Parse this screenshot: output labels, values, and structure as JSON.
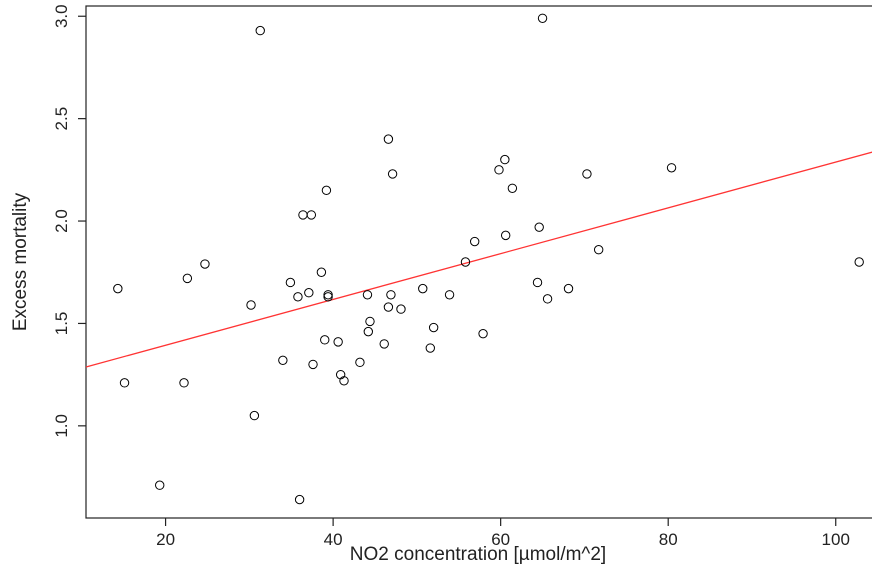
{
  "chart_data": {
    "type": "scatter",
    "title": "",
    "xlabel": "NO2 concentration [µmol/m^2]",
    "ylabel": "Excess mortality",
    "xlim": [
      10.5,
      106
    ],
    "ylim": [
      0.55,
      3.05
    ],
    "x_ticks": [
      20,
      40,
      60,
      80,
      100
    ],
    "y_ticks": [
      1.0,
      1.5,
      2.0,
      2.5,
      3.0
    ],
    "x_tick_labels": [
      "20",
      "40",
      "60",
      "80",
      "100"
    ],
    "y_tick_labels": [
      "1.0",
      "1.5",
      "2.0",
      "2.5",
      "3.0"
    ],
    "grid": false,
    "legend": "none",
    "series": [
      {
        "points": [
          [
            14.3,
            1.67
          ],
          [
            15.1,
            1.21
          ],
          [
            19.3,
            0.71
          ],
          [
            22.2,
            1.21
          ],
          [
            22.6,
            1.72
          ],
          [
            24.7,
            1.79
          ],
          [
            30.2,
            1.59
          ],
          [
            30.6,
            1.05
          ],
          [
            31.3,
            2.93
          ],
          [
            34.0,
            1.32
          ],
          [
            34.9,
            1.7
          ],
          [
            35.8,
            1.63
          ],
          [
            36.0,
            0.64
          ],
          [
            36.4,
            2.03
          ],
          [
            37.1,
            1.65
          ],
          [
            37.4,
            2.03
          ],
          [
            37.6,
            1.3
          ],
          [
            38.6,
            1.75
          ],
          [
            39.0,
            1.42
          ],
          [
            39.2,
            2.15
          ],
          [
            39.4,
            1.63
          ],
          [
            39.4,
            1.64
          ],
          [
            40.6,
            1.41
          ],
          [
            40.9,
            1.25
          ],
          [
            41.3,
            1.22
          ],
          [
            43.2,
            1.31
          ],
          [
            44.1,
            1.64
          ],
          [
            44.2,
            1.46
          ],
          [
            44.4,
            1.51
          ],
          [
            46.1,
            1.4
          ],
          [
            46.6,
            2.4
          ],
          [
            46.6,
            1.58
          ],
          [
            46.9,
            1.64
          ],
          [
            47.1,
            2.23
          ],
          [
            48.1,
            1.57
          ],
          [
            50.7,
            1.67
          ],
          [
            51.6,
            1.38
          ],
          [
            52.0,
            1.48
          ],
          [
            53.9,
            1.64
          ],
          [
            55.8,
            1.8
          ],
          [
            56.9,
            1.9
          ],
          [
            57.9,
            1.45
          ],
          [
            59.8,
            2.25
          ],
          [
            60.5,
            2.3
          ],
          [
            60.6,
            1.93
          ],
          [
            61.4,
            2.16
          ],
          [
            64.4,
            1.7
          ],
          [
            64.6,
            1.97
          ],
          [
            65.0,
            2.99
          ],
          [
            65.6,
            1.62
          ],
          [
            68.1,
            1.67
          ],
          [
            70.3,
            2.23
          ],
          [
            71.7,
            1.86
          ],
          [
            80.4,
            2.26
          ],
          [
            102.8,
            1.8
          ]
        ],
        "marker_color": "#000000"
      }
    ],
    "trend_line": {
      "type": "linear",
      "intercept": 1.17,
      "slope": 0.01118,
      "color": "#ff3333"
    }
  }
}
